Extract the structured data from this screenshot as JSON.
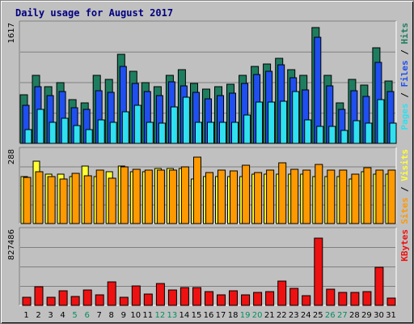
{
  "title": "Daily usage for August 2017",
  "colors": {
    "hits": "#1f7d5f",
    "files": "#1f4ff0",
    "pages": "#2ee0f0",
    "visits": "#ffff33",
    "sites": "#ff9900",
    "kbytes": "#ee1111",
    "weekend_day": "#009060",
    "weekday": "#000000"
  },
  "chart_data": [
    {
      "type": "bar",
      "panel": "hits-files-pages",
      "categories": [
        "1",
        "2",
        "3",
        "4",
        "5",
        "6",
        "7",
        "8",
        "9",
        "10",
        "11",
        "12",
        "13",
        "14",
        "15",
        "16",
        "17",
        "18",
        "19",
        "20",
        "21",
        "22",
        "23",
        "24",
        "25",
        "26",
        "27",
        "28",
        "29",
        "30",
        "31"
      ],
      "ymax_label": "1617",
      "ylim": [
        0,
        1617
      ],
      "grid": true,
      "series": [
        {
          "name": "Hits",
          "values": [
            660,
            925,
            770,
            830,
            590,
            550,
            925,
            865,
            1210,
            975,
            830,
            770,
            925,
            1000,
            810,
            740,
            770,
            800,
            925,
            1050,
            1080,
            1160,
            1000,
            925,
            1570,
            925,
            550,
            865,
            790,
            1300,
            850
          ]
        },
        {
          "name": "Files",
          "values": [
            520,
            770,
            650,
            700,
            480,
            460,
            710,
            690,
            1040,
            810,
            700,
            650,
            840,
            780,
            690,
            600,
            650,
            680,
            810,
            940,
            980,
            1070,
            890,
            730,
            1440,
            780,
            460,
            710,
            640,
            1100,
            700
          ]
        },
        {
          "name": "Pages",
          "values": [
            190,
            460,
            290,
            340,
            240,
            190,
            320,
            290,
            430,
            520,
            290,
            280,
            500,
            630,
            290,
            290,
            290,
            290,
            380,
            560,
            560,
            570,
            700,
            320,
            230,
            230,
            180,
            310,
            270,
            590,
            270
          ]
        }
      ],
      "axis_right_label": [
        "Pages",
        "Files",
        "Hits"
      ]
    },
    {
      "type": "bar",
      "panel": "visits-sites",
      "categories": [
        "1",
        "2",
        "3",
        "4",
        "5",
        "6",
        "7",
        "8",
        "9",
        "10",
        "11",
        "12",
        "13",
        "14",
        "15",
        "16",
        "17",
        "18",
        "19",
        "20",
        "21",
        "22",
        "23",
        "24",
        "25",
        "26",
        "27",
        "28",
        "29",
        "30",
        "31"
      ],
      "ymax_label": "288",
      "ylim": [
        0,
        288
      ],
      "grid": true,
      "series": [
        {
          "name": "Visits",
          "values": [
            186,
            246,
            196,
            196,
            186,
            226,
            186,
            206,
            226,
            206,
            206,
            216,
            216,
            218,
            176,
            186,
            186,
            186,
            186,
            196,
            196,
            196,
            196,
            196,
            186,
            186,
            186,
            176,
            206,
            196,
            196
          ]
        },
        {
          "name": "Sites",
          "values": [
            182,
            205,
            185,
            177,
            198,
            190,
            210,
            180,
            225,
            215,
            210,
            212,
            210,
            225,
            262,
            202,
            212,
            208,
            230,
            200,
            210,
            240,
            213,
            212,
            235,
            210,
            210,
            196,
            222,
            210,
            210
          ]
        }
      ],
      "axis_right_label": [
        "Sites",
        "Visits"
      ]
    },
    {
      "type": "bar",
      "panel": "kbytes",
      "categories": [
        "1",
        "2",
        "3",
        "4",
        "5",
        "6",
        "7",
        "8",
        "9",
        "10",
        "11",
        "12",
        "13",
        "14",
        "15",
        "16",
        "17",
        "18",
        "19",
        "20",
        "21",
        "22",
        "23",
        "24",
        "25",
        "26",
        "27",
        "28",
        "29",
        "30",
        "31"
      ],
      "ymax_label": "827486",
      "ylim": [
        0,
        827486
      ],
      "grid": true,
      "series": [
        {
          "name": "KBytes",
          "values": [
            90000,
            210000,
            90000,
            160000,
            100000,
            170000,
            120000,
            260000,
            90000,
            220000,
            130000,
            240000,
            175000,
            200000,
            195000,
            150000,
            120000,
            160000,
            115000,
            140000,
            150000,
            270000,
            190000,
            110000,
            750000,
            180000,
            140000,
            140000,
            150000,
            420000,
            80000
          ]
        }
      ],
      "axis_right_label": [
        "KBytes"
      ]
    }
  ],
  "weekend_days": [
    "5",
    "6",
    "12",
    "13",
    "19",
    "20",
    "26",
    "27"
  ]
}
